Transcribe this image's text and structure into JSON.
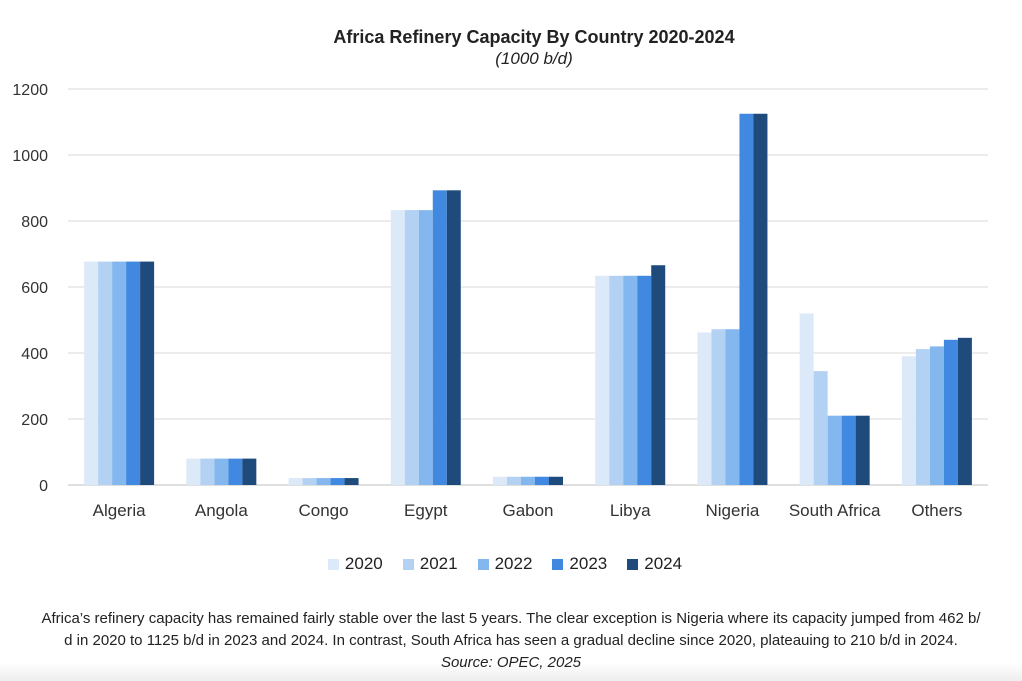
{
  "chart_data": {
    "type": "bar",
    "title": "Africa Refinery Capacity By Country 2020-2024",
    "subtitle": "(1000 b/d)",
    "categories": [
      "Algeria",
      "Angola",
      "Congo",
      "Egypt",
      "Gabon",
      "Libya",
      "Nigeria",
      "South Africa",
      "Others"
    ],
    "series": [
      {
        "name": "2020",
        "color": "#dce9f8",
        "values": [
          677,
          80,
          21,
          833,
          25,
          634,
          462,
          520,
          390
        ]
      },
      {
        "name": "2021",
        "color": "#b3d2f3",
        "values": [
          677,
          80,
          21,
          833,
          25,
          634,
          472,
          345,
          412
        ]
      },
      {
        "name": "2022",
        "color": "#84b7ee",
        "values": [
          677,
          80,
          21,
          833,
          25,
          634,
          472,
          210,
          420
        ]
      },
      {
        "name": "2023",
        "color": "#4189e0",
        "values": [
          677,
          80,
          21,
          893,
          25,
          634,
          1125,
          210,
          440
        ]
      },
      {
        "name": "2024",
        "color": "#1f4a7c",
        "values": [
          677,
          80,
          21,
          893,
          25,
          666,
          1125,
          210,
          446
        ]
      }
    ],
    "yticks": [
      "0",
      "200",
      "400",
      "600",
      "800",
      "1000",
      "1200"
    ],
    "ylim": [
      0,
      1200
    ],
    "grid": true,
    "legend_position": "bottom"
  },
  "caption": {
    "line1": "Africa’s refinery capacity has remained fairly stable over the last 5 years. The clear exception is Nigeria where its capacity jumped from 462 b/",
    "line2": "d in 2020 to 1125 b/d in 2023 and 2024. In contrast, South Africa has seen a gradual decline since 2020, plateauing to 210 b/d in 2024.",
    "source": "Source: OPEC, 2025"
  }
}
